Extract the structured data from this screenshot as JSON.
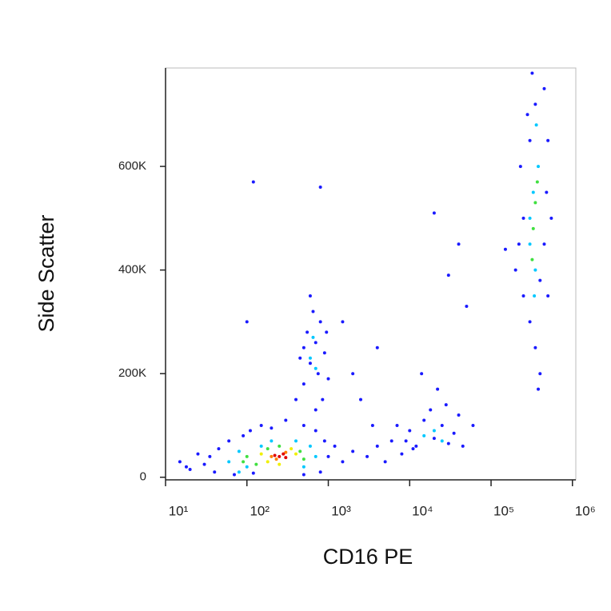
{
  "chart_data": {
    "type": "scatter",
    "xlabel": "CD16 PE",
    "ylabel": "Side Scatter",
    "xscale": "log",
    "xlim": [
      10,
      1100000
    ],
    "xticks": [
      {
        "value": 10,
        "label": "10¹"
      },
      {
        "value": 100,
        "label": "10²"
      },
      {
        "value": 1000,
        "label": "10³"
      },
      {
        "value": 10000,
        "label": "10⁴"
      },
      {
        "value": 100000,
        "label": "10⁵"
      },
      {
        "value": 1000000,
        "label": "10⁶"
      }
    ],
    "ylim": [
      -5000,
      790000
    ],
    "yticks": [
      0,
      {
        "value": 200000,
        "label": "200K"
      },
      {
        "value": 400000,
        "label": "400K"
      },
      {
        "value": 600000,
        "label": "600K"
      }
    ],
    "series": [
      {
        "color": "#1a1aff",
        "x": [
          15,
          20,
          25,
          30,
          40,
          45,
          60,
          70,
          90,
          110,
          150,
          200,
          300,
          500,
          700,
          900,
          1000,
          800,
          500,
          120,
          35,
          18,
          1200,
          1500,
          400,
          500,
          600,
          700,
          800,
          900,
          550,
          650,
          750,
          450,
          1000,
          850,
          600,
          700,
          500,
          950,
          2000,
          3000,
          4000,
          5000,
          2500,
          3500,
          6000,
          8000,
          1500,
          2000,
          4000,
          100,
          120,
          800,
          30000,
          40000,
          20000,
          50000,
          60000,
          7000,
          9000,
          10000,
          12000,
          15000,
          18000,
          20000,
          25000,
          30000,
          35000,
          40000,
          14000,
          22000,
          45000,
          11000,
          28000,
          200000,
          250000,
          300000,
          350000,
          400000,
          250000,
          230000,
          280000,
          320000,
          450000,
          500000,
          480000,
          450000,
          400000,
          220000,
          350000,
          300000,
          500000,
          380000,
          150000,
          550000
        ],
        "y": [
          30000,
          15000,
          45000,
          25000,
          10000,
          55000,
          70000,
          5000,
          80000,
          90000,
          100000,
          95000,
          110000,
          100000,
          90000,
          70000,
          40000,
          10000,
          5000,
          8000,
          40000,
          20000,
          60000,
          30000,
          150000,
          180000,
          220000,
          260000,
          300000,
          240000,
          280000,
          320000,
          200000,
          230000,
          190000,
          150000,
          350000,
          130000,
          250000,
          280000,
          50000,
          40000,
          60000,
          30000,
          150000,
          100000,
          70000,
          45000,
          300000,
          200000,
          250000,
          300000,
          570000,
          560000,
          390000,
          450000,
          510000,
          330000,
          100000,
          100000,
          70000,
          90000,
          60000,
          110000,
          130000,
          75000,
          100000,
          65000,
          85000,
          120000,
          200000,
          170000,
          60000,
          55000,
          140000,
          400000,
          350000,
          300000,
          250000,
          200000,
          500000,
          600000,
          700000,
          780000,
          750000,
          650000,
          550000,
          450000,
          380000,
          450000,
          720000,
          650000,
          350000,
          170000,
          440000,
          500000
        ]
      },
      {
        "color": "#00c8ff",
        "x": [
          60,
          80,
          100,
          150,
          400,
          600,
          700,
          80,
          200,
          500,
          600,
          700,
          650,
          15000,
          20000,
          25000,
          300000,
          350000,
          330000,
          380000,
          300000,
          360000,
          340000
        ],
        "y": [
          30000,
          50000,
          20000,
          60000,
          70000,
          60000,
          40000,
          10000,
          70000,
          20000,
          230000,
          210000,
          270000,
          80000,
          90000,
          70000,
          450000,
          400000,
          550000,
          600000,
          500000,
          680000,
          350000
        ]
      },
      {
        "color": "#40e040",
        "x": [
          100,
          130,
          180,
          250,
          450,
          500,
          90,
          330000,
          350000,
          370000,
          320000
        ],
        "y": [
          40000,
          25000,
          55000,
          60000,
          50000,
          35000,
          30000,
          480000,
          530000,
          570000,
          420000
        ]
      },
      {
        "color": "#f0f000",
        "x": [
          150,
          180,
          350,
          400,
          250
        ],
        "y": [
          45000,
          30000,
          55000,
          45000,
          25000
        ]
      },
      {
        "color": "#ff8000",
        "x": [
          200,
          300,
          230
        ],
        "y": [
          40000,
          48000,
          35000
        ]
      },
      {
        "color": "#e00000",
        "x": [
          250,
          300,
          280,
          220
        ],
        "y": [
          40000,
          38000,
          45000,
          42000
        ]
      }
    ]
  }
}
